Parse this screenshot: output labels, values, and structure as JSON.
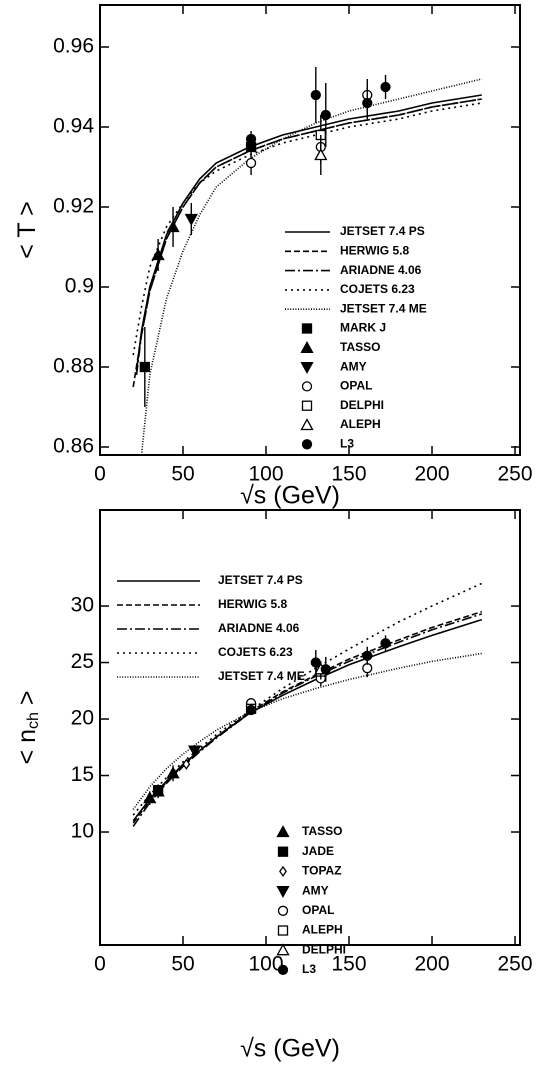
{
  "chart_data": [
    {
      "type": "line",
      "ylabel": "< T >",
      "xlabel": "√s  (GeV)",
      "xlim": [
        0,
        253
      ],
      "ylim": [
        0.858,
        0.9705
      ],
      "xticks": [
        0,
        50,
        100,
        150,
        200,
        250
      ],
      "yticks": [
        0.86,
        0.88,
        0.9,
        0.92,
        0.94,
        0.96
      ],
      "series": [
        {
          "name": "JETSET 7.4 PS",
          "color": "#000000",
          "style": "solid",
          "x": [
            22,
            25,
            30,
            40,
            50,
            60,
            70,
            90,
            110,
            130,
            150,
            180,
            200,
            230
          ],
          "values": [
            0.879,
            0.889,
            0.9,
            0.913,
            0.921,
            0.927,
            0.931,
            0.935,
            0.938,
            0.94,
            0.942,
            0.944,
            0.946,
            0.948
          ]
        },
        {
          "name": "HERWIG 5.8",
          "color": "#000000",
          "style": "dashed",
          "x": [
            20,
            25,
            30,
            40,
            50,
            60,
            70,
            90,
            110,
            130,
            150,
            180,
            200,
            230
          ],
          "values": [
            0.875,
            0.888,
            0.899,
            0.912,
            0.92,
            0.926,
            0.93,
            0.934,
            0.937,
            0.939,
            0.941,
            0.943,
            0.945,
            0.947
          ]
        },
        {
          "name": "ARIADNE 4.06",
          "color": "#000000",
          "style": "dashdot",
          "x": [
            22,
            25,
            30,
            40,
            50,
            60,
            70,
            90,
            110,
            130,
            150,
            180,
            200,
            230
          ],
          "values": [
            0.878,
            0.888,
            0.899,
            0.912,
            0.92,
            0.926,
            0.93,
            0.934,
            0.937,
            0.939,
            0.941,
            0.943,
            0.945,
            0.947
          ]
        },
        {
          "name": "COJETS 6.23",
          "color": "#000000",
          "style": "dotted",
          "x": [
            20,
            25,
            30,
            40,
            50,
            60,
            70,
            90,
            110,
            130,
            150,
            180,
            200,
            230
          ],
          "values": [
            0.883,
            0.895,
            0.905,
            0.915,
            0.921,
            0.926,
            0.929,
            0.933,
            0.936,
            0.938,
            0.94,
            0.942,
            0.944,
            0.946
          ]
        },
        {
          "name": "JETSET 7.4 ME",
          "color": "#000000",
          "style": "fine",
          "x": [
            25,
            30,
            40,
            50,
            60,
            70,
            90,
            110,
            130,
            150,
            180,
            200,
            230
          ],
          "values": [
            0.858,
            0.878,
            0.897,
            0.909,
            0.918,
            0.925,
            0.932,
            0.937,
            0.941,
            0.944,
            0.947,
            0.949,
            0.952
          ]
        }
      ],
      "points": [
        {
          "name": "MARK J",
          "marker": "square-filled",
          "x": [
            27,
            91
          ],
          "values": [
            0.88,
            0.935
          ],
          "errors": [
            0.01,
            null
          ]
        },
        {
          "name": "TASSO",
          "marker": "triangle-up-filled",
          "x": [
            35,
            44
          ],
          "values": [
            0.908,
            0.915
          ],
          "errors": [
            0.004,
            0.005
          ]
        },
        {
          "name": "AMY",
          "marker": "triangle-down-filled",
          "x": [
            55
          ],
          "values": [
            0.917
          ],
          "errors": [
            0.004
          ]
        },
        {
          "name": "OPAL",
          "marker": "circle-open",
          "x": [
            91,
            133,
            161
          ],
          "values": [
            0.931,
            0.935,
            0.948
          ],
          "errors": [
            0.003,
            0.004,
            0.004
          ]
        },
        {
          "name": "DELPHI",
          "marker": "square-open",
          "x": [
            133
          ],
          "values": [
            0.938
          ],
          "errors": [
            0.005
          ]
        },
        {
          "name": "ALEPH",
          "marker": "triangle-up-open",
          "x": [
            133
          ],
          "values": [
            0.933
          ],
          "errors": [
            0.005
          ]
        },
        {
          "name": "L3",
          "marker": "circle-filled",
          "x": [
            91,
            130,
            136,
            161,
            172
          ],
          "values": [
            0.937,
            0.948,
            0.943,
            0.946,
            0.95
          ],
          "errors": [
            0.002,
            0.007,
            0.008,
            0.004,
            0.003
          ]
        }
      ]
    },
    {
      "type": "line",
      "ylabel": "< n",
      "ylabel_sub": "ch",
      "ylabel_end": " >",
      "xlabel": "√s  (GeV)",
      "xlim": [
        0,
        253
      ],
      "ylim": [
        0,
        38.5
      ],
      "xticks": [
        0,
        50,
        100,
        150,
        200,
        250
      ],
      "yticks": [
        10,
        15,
        20,
        25,
        30
      ],
      "series": [
        {
          "name": "JETSET 7.4 PS",
          "color": "#000000",
          "style": "solid",
          "x": [
            20,
            30,
            40,
            50,
            60,
            70,
            90,
            110,
            130,
            150,
            180,
            200,
            230
          ],
          "values": [
            11.0,
            12.9,
            14.5,
            16.0,
            17.2,
            18.4,
            20.5,
            22.1,
            23.5,
            24.8,
            26.4,
            27.4,
            28.8
          ]
        },
        {
          "name": "HERWIG 5.8",
          "color": "#000000",
          "style": "dashed",
          "x": [
            20,
            30,
            40,
            50,
            60,
            70,
            90,
            110,
            130,
            150,
            180,
            200,
            230
          ],
          "values": [
            10.8,
            12.8,
            14.4,
            15.9,
            17.2,
            18.4,
            20.6,
            22.4,
            23.9,
            25.3,
            27.0,
            28.1,
            29.5
          ]
        },
        {
          "name": "ARIADNE 4.06",
          "color": "#000000",
          "style": "dashdot",
          "x": [
            20,
            30,
            40,
            50,
            60,
            70,
            90,
            110,
            130,
            150,
            180,
            200,
            230
          ],
          "values": [
            10.5,
            12.6,
            14.3,
            15.8,
            17.1,
            18.3,
            20.5,
            22.3,
            23.8,
            25.1,
            26.8,
            27.9,
            29.3
          ]
        },
        {
          "name": "COJETS 6.23",
          "color": "#000000",
          "style": "dotted",
          "x": [
            20,
            30,
            40,
            50,
            60,
            70,
            90,
            110,
            130,
            150,
            180,
            200,
            230
          ],
          "values": [
            11.5,
            13.3,
            14.8,
            16.2,
            17.4,
            18.6,
            20.7,
            22.7,
            24.5,
            26.2,
            28.6,
            30.0,
            32.0
          ]
        },
        {
          "name": "JETSET 7.4 ME",
          "color": "#000000",
          "style": "fine",
          "x": [
            20,
            30,
            40,
            50,
            60,
            70,
            90,
            110,
            130,
            150,
            180,
            200,
            230
          ],
          "values": [
            12.0,
            14.0,
            15.6,
            16.9,
            18.0,
            19.0,
            20.6,
            21.8,
            22.7,
            23.5,
            24.5,
            25.1,
            25.8
          ]
        }
      ],
      "points": [
        {
          "name": "TASSO",
          "marker": "triangle-up-filled",
          "x": [
            30,
            35,
            44
          ],
          "values": [
            13.0,
            13.6,
            15.2
          ],
          "errors": [
            0.6,
            0.6,
            0.7
          ]
        },
        {
          "name": "JADE",
          "marker": "square-filled",
          "x": [
            35
          ],
          "values": [
            13.7
          ],
          "errors": [
            0.5
          ]
        },
        {
          "name": "TOPAZ",
          "marker": "diamond-open",
          "x": [
            52
          ],
          "values": [
            16.0
          ],
          "errors": [
            0.4
          ]
        },
        {
          "name": "AMY",
          "marker": "triangle-down-filled",
          "x": [
            57
          ],
          "values": [
            17.2
          ],
          "errors": [
            0.5
          ]
        },
        {
          "name": "OPAL",
          "marker": "circle-open",
          "x": [
            91,
            133,
            161
          ],
          "values": [
            21.4,
            23.6,
            24.5
          ],
          "errors": [
            0.3,
            0.7,
            0.8
          ]
        },
        {
          "name": "ALEPH",
          "marker": "square-open",
          "x": [
            91,
            133
          ],
          "values": [
            20.9,
            24.2
          ],
          "errors": [
            0.4,
            0.7
          ]
        },
        {
          "name": "DELPHI",
          "marker": "triangle-up-open",
          "x": [
            133
          ],
          "values": [
            24.4
          ],
          "errors": [
            0.7
          ]
        },
        {
          "name": "L3",
          "marker": "circle-filled",
          "x": [
            91,
            130,
            136,
            161,
            172
          ],
          "values": [
            20.8,
            25.0,
            24.4,
            25.6,
            26.7
          ],
          "errors": [
            0.4,
            1.1,
            1.1,
            0.8,
            0.7
          ]
        }
      ]
    }
  ]
}
